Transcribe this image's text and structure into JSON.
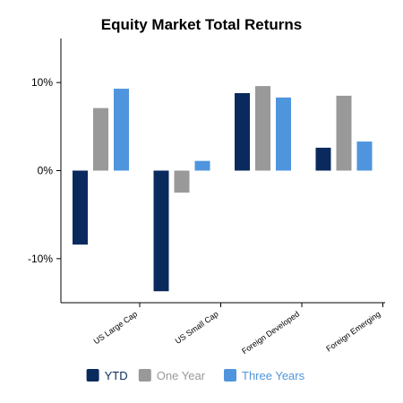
{
  "chart_data": {
    "type": "bar",
    "title": "Equity Market Total Returns",
    "xlabel": "",
    "ylabel": "",
    "categories": [
      "US Large Cap",
      "US Small Cap",
      "Foreign Developed",
      "Foreign Emerging"
    ],
    "series": [
      {
        "name": "YTD",
        "color": "#0a2a5e",
        "values": [
          -8.4,
          -13.7,
          8.8,
          2.6
        ]
      },
      {
        "name": "One Year",
        "color": "#999999",
        "values": [
          7.1,
          -2.5,
          9.6,
          8.5
        ]
      },
      {
        "name": "Three Years",
        "color": "#4f95dd",
        "values": [
          9.3,
          1.1,
          8.3,
          3.3
        ]
      }
    ],
    "ylim": [
      -15,
      15
    ],
    "yticks": [
      10,
      0,
      -10
    ],
    "ytick_labels": [
      "10%",
      "0%",
      "-10%"
    ],
    "grid": false,
    "legend": "bottom"
  }
}
